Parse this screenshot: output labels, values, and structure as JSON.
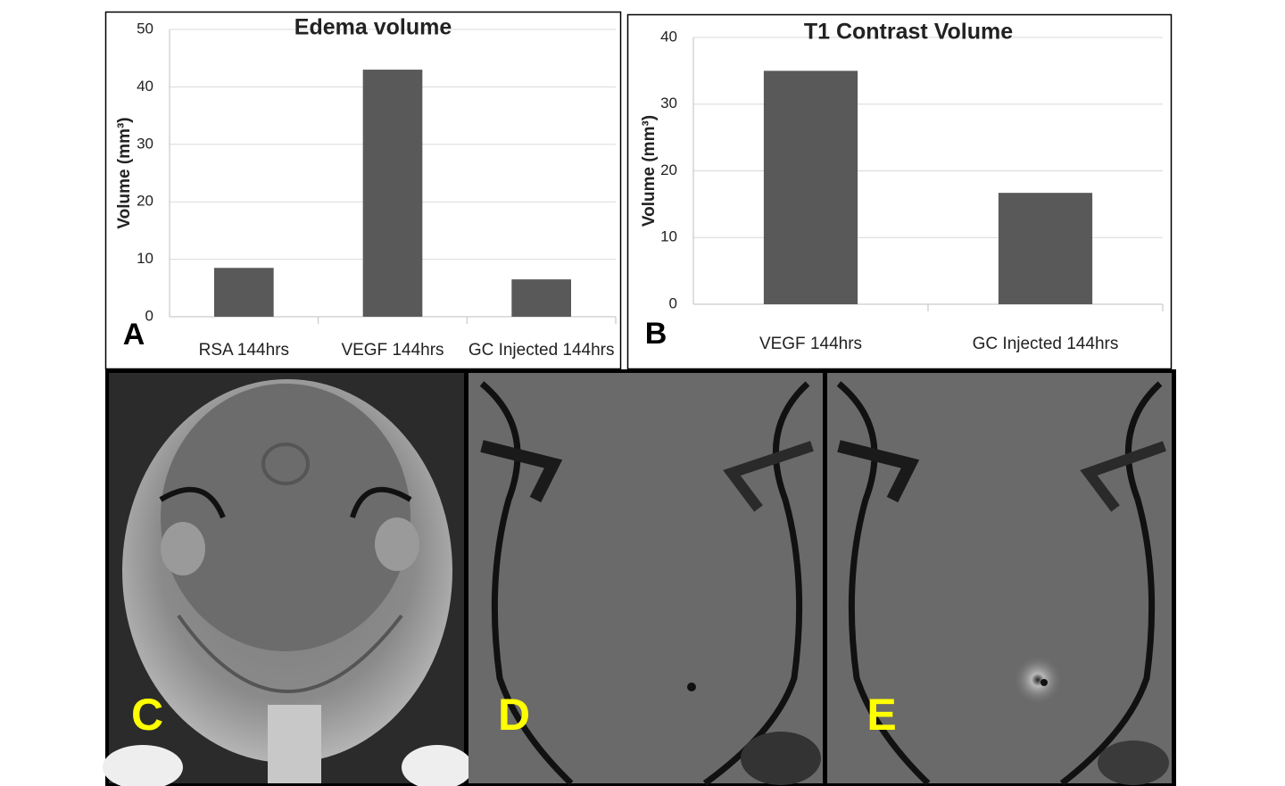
{
  "chart_data": [
    {
      "type": "bar",
      "title": "Edema volume",
      "y_label": "Volume (mm³)",
      "panel_label": "A",
      "categories": [
        "RSA 144hrs",
        "VEGF 144hrs",
        "GC Injected 144hrs"
      ],
      "values": [
        8.5,
        43,
        6.5
      ],
      "color": "#595959",
      "ylim": [
        0,
        50
      ],
      "yticks": [
        0,
        10,
        20,
        30,
        40,
        50
      ],
      "grid": true
    },
    {
      "type": "bar",
      "title": "T1 Contrast Volume",
      "y_label": "Volume (mm³)",
      "panel_label": "B",
      "categories": [
        "VEGF 144hrs",
        "GC Injected 144hrs"
      ],
      "values": [
        35,
        16.7
      ],
      "color": "#595959",
      "ylim": [
        0,
        40
      ],
      "yticks": [
        0,
        10,
        20,
        30,
        40
      ],
      "grid": true
    }
  ],
  "images": [
    {
      "label": "C"
    },
    {
      "label": "D"
    },
    {
      "label": "E"
    }
  ]
}
